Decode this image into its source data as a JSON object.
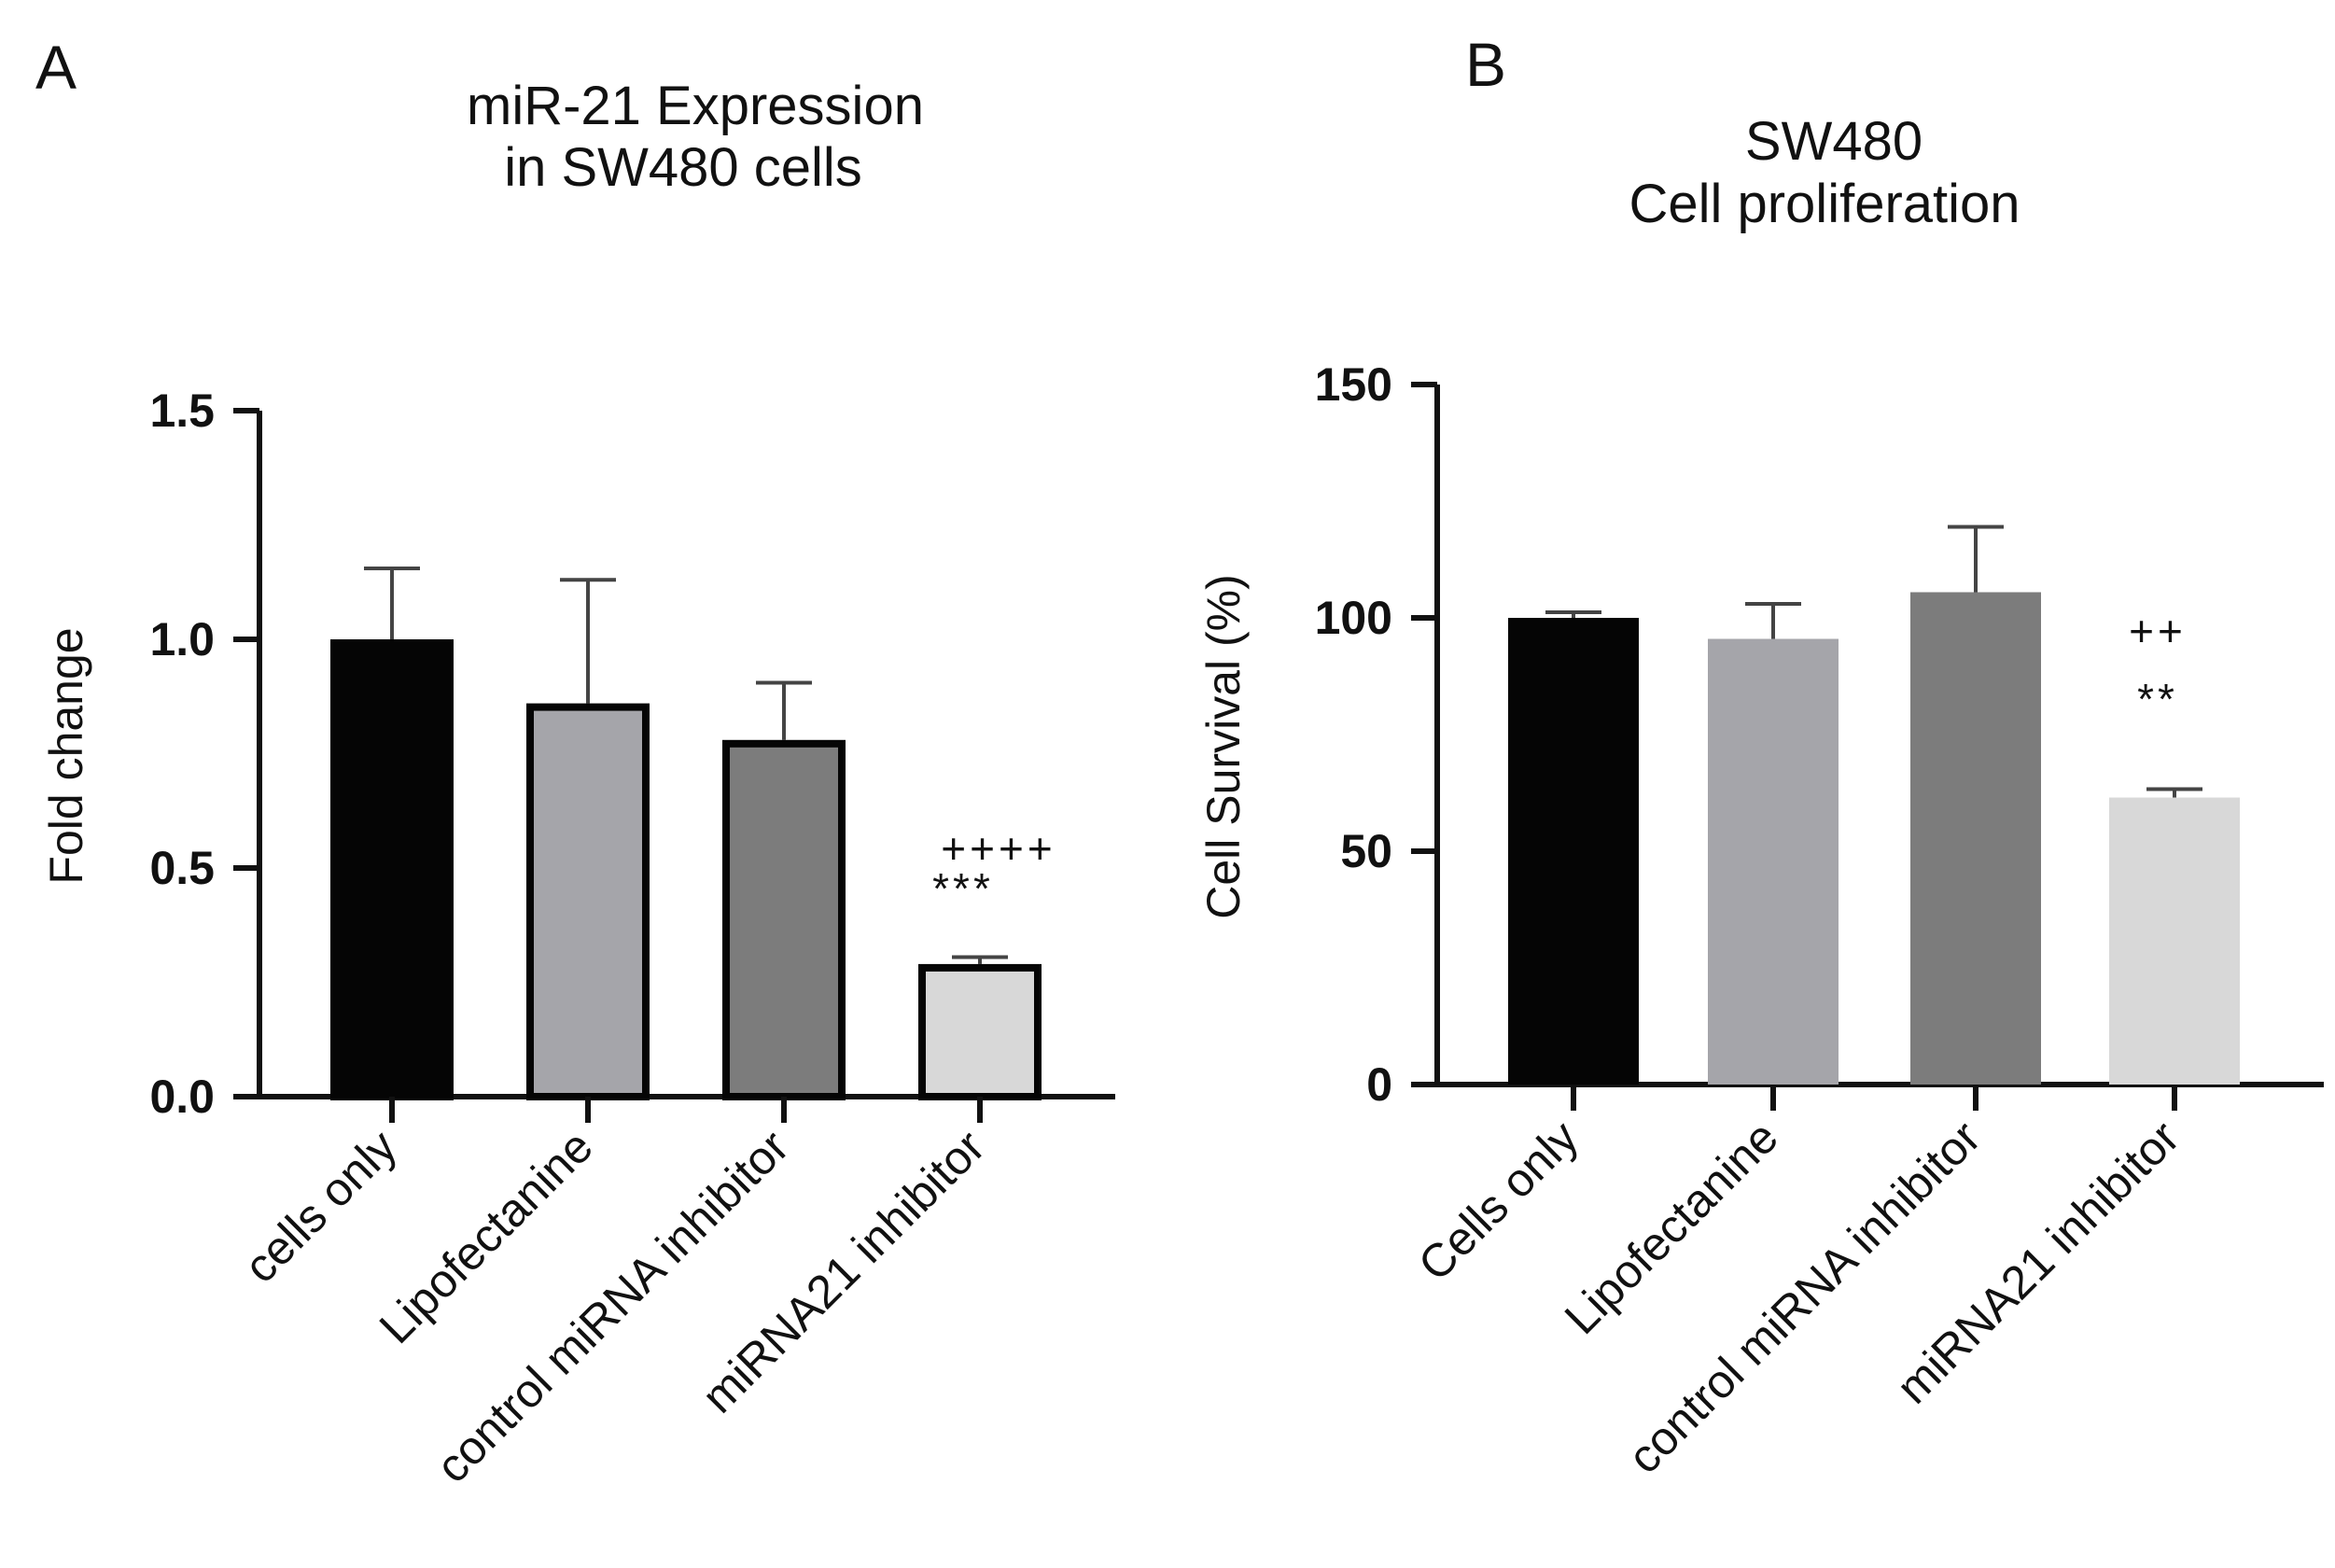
{
  "panels": [
    {
      "letter": "A",
      "title_lines": [
        "miR-21 Expression",
        "in SW480 cells"
      ]
    },
    {
      "letter": "B",
      "title_lines": [
        "SW480",
        "Cell proliferation"
      ]
    }
  ],
  "chart_data": [
    {
      "type": "bar",
      "panel": "A",
      "title": "miR-21 Expression in SW480 cells",
      "xlabel": "",
      "ylabel": "Fold change",
      "ylim": [
        0,
        1.5
      ],
      "yticks": [
        0.0,
        0.5,
        1.0,
        1.5
      ],
      "ytick_labels": [
        "0.0",
        "0.5",
        "1.0",
        "1.5"
      ],
      "categories": [
        "cells only",
        "Lipofectanine",
        "control miRNA inhibitor",
        "miRNA21 inhibitor"
      ],
      "values": [
        1.0,
        0.86,
        0.78,
        0.29
      ],
      "errors": [
        0.155,
        0.27,
        0.125,
        0.015
      ],
      "bar_colors": [
        "#050505",
        "#a5a5aa",
        "#7c7c7c",
        "#d8d8d8"
      ],
      "bar_outline": "#050505",
      "annotations": [
        {
          "category": "miRNA21 inhibitor",
          "text": "++++"
        },
        {
          "category": "miRNA21 inhibitor",
          "text": "***"
        }
      ]
    },
    {
      "type": "bar",
      "panel": "B",
      "title": "SW480 Cell proliferation",
      "xlabel": "",
      "ylabel": "Cell Survival    (%)",
      "ylim": [
        0,
        150
      ],
      "yticks": [
        0,
        50,
        100,
        150
      ],
      "ytick_labels": [
        "0",
        "50",
        "100",
        "150"
      ],
      "categories": [
        "Cells only",
        "Lipofectanine",
        "control miRNA inhibitor",
        "miRNA21 inhibitor"
      ],
      "values": [
        100,
        95.5,
        105.5,
        61.5
      ],
      "errors": [
        1.2,
        7.5,
        14,
        1.8
      ],
      "bar_colors": [
        "#050505",
        "#a5a5aa",
        "#7c7c7c",
        "#d8d8d8"
      ],
      "bar_outline": "none",
      "annotations": [
        {
          "category": "miRNA21 inhibitor",
          "text": "++"
        },
        {
          "category": "miRNA21 inhibitor",
          "text": "**"
        }
      ]
    }
  ]
}
